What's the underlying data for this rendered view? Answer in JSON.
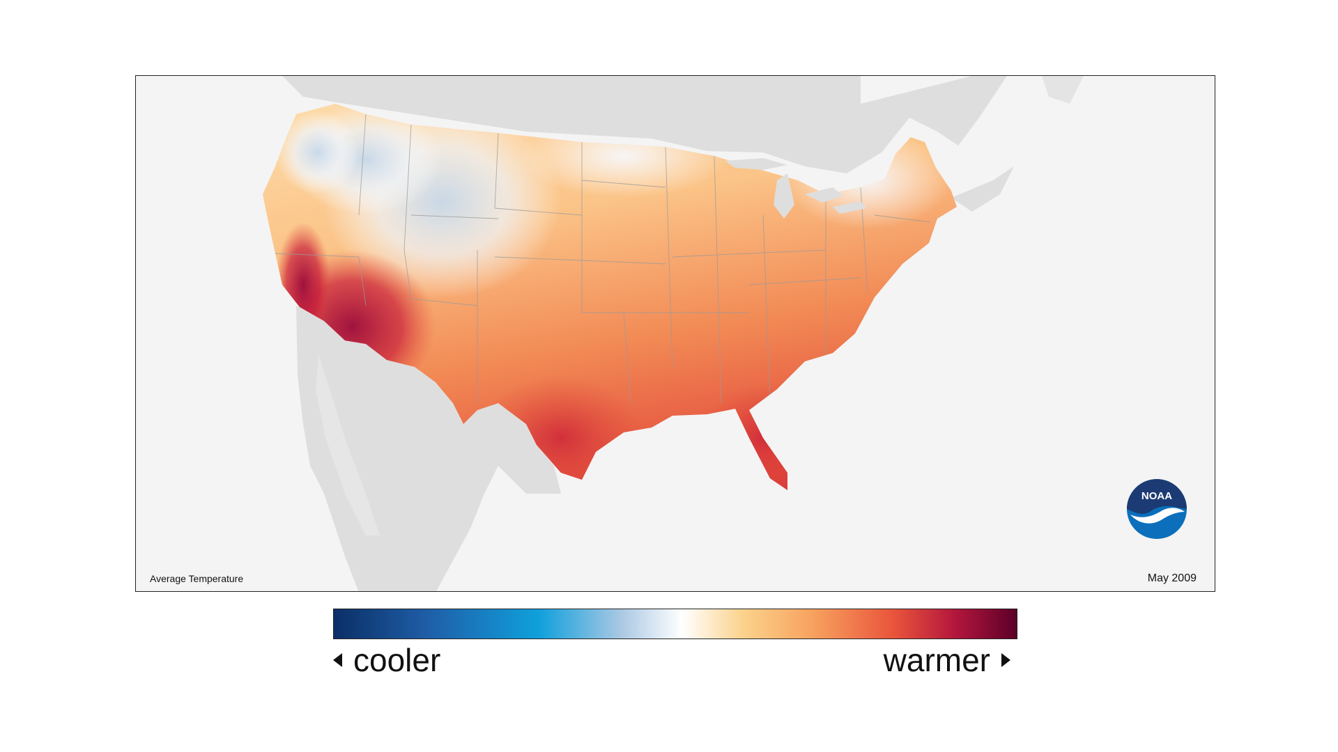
{
  "map": {
    "caption": "Average Temperature",
    "date": "May 2009",
    "logo_text": "NOAA"
  },
  "legend": {
    "low_label": "cooler",
    "high_label": "warmer",
    "colors": [
      "#0b2f67",
      "#1f5fa8",
      "#0fa0dc",
      "#a9c8e3",
      "#ffffff",
      "#fbd28b",
      "#f7a25f",
      "#e9543b",
      "#b3163c",
      "#5c0029"
    ]
  },
  "colors": {
    "land_background": "#dedede",
    "map_background": "#f4f4f4",
    "state_border": "#9a9a9a"
  }
}
